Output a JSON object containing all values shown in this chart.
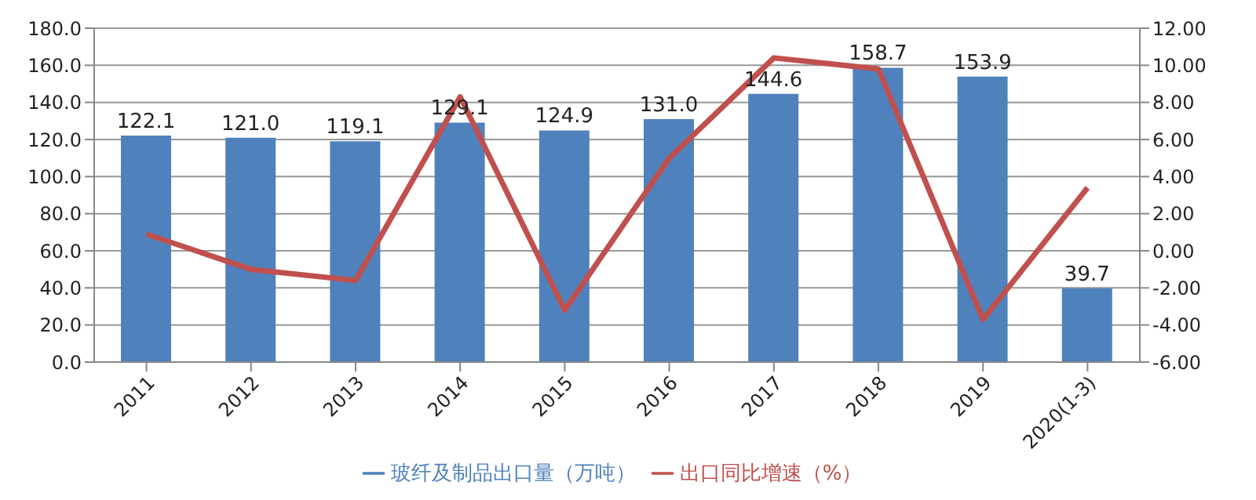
{
  "chart_data": {
    "type": "bar",
    "categories": [
      "2011",
      "2012",
      "2013",
      "2014",
      "2015",
      "2016",
      "2017",
      "2018",
      "2019",
      "2020(1-3)"
    ],
    "series": [
      {
        "name": "玻纤及制品出口量（万吨）",
        "color": "#4f81bd",
        "values": [
          122.1,
          121.0,
          119.1,
          129.1,
          124.9,
          131.0,
          144.6,
          158.7,
          153.9,
          39.7
        ],
        "value_labels": [
          "122.1",
          "121.0",
          "119.1",
          "129.1",
          "124.9",
          "131.0",
          "144.6",
          "158.7",
          "153.9",
          "39.7"
        ]
      },
      {
        "name": "出口同比增速（%）",
        "type": "line",
        "axis": "y2",
        "color": "#c0504d",
        "values": [
          0.9,
          -1.0,
          -1.6,
          8.3,
          -3.2,
          5.0,
          10.4,
          9.8,
          -3.7,
          3.4
        ]
      }
    ],
    "ylim": [
      0,
      180
    ],
    "yticks": [
      {
        "value": 0,
        "label": "0.0"
      },
      {
        "value": 20,
        "label": "20.0"
      },
      {
        "value": 40,
        "label": "40.0"
      },
      {
        "value": 60,
        "label": "60.0"
      },
      {
        "value": 80,
        "label": "80.0"
      },
      {
        "value": 100,
        "label": "100.0"
      },
      {
        "value": 120,
        "label": "120.0"
      },
      {
        "value": 140,
        "label": "140.0"
      },
      {
        "value": 160,
        "label": "160.0"
      },
      {
        "value": 180,
        "label": "180.0"
      }
    ],
    "y2lim": [
      -6,
      12
    ],
    "y2ticks": [
      {
        "value": -6,
        "label": "-6.00"
      },
      {
        "value": -4,
        "label": "-4.00"
      },
      {
        "value": -2,
        "label": "-2.00"
      },
      {
        "value": 0,
        "label": "0.00"
      },
      {
        "value": 2,
        "label": "2.00"
      },
      {
        "value": 4,
        "label": "4.00"
      },
      {
        "value": 6,
        "label": "6.00"
      },
      {
        "value": 8,
        "label": "8.00"
      },
      {
        "value": 10,
        "label": "10.00"
      },
      {
        "value": 12,
        "label": "12.00"
      }
    ],
    "grid": "y",
    "legend": "bottom",
    "marker": "none"
  }
}
